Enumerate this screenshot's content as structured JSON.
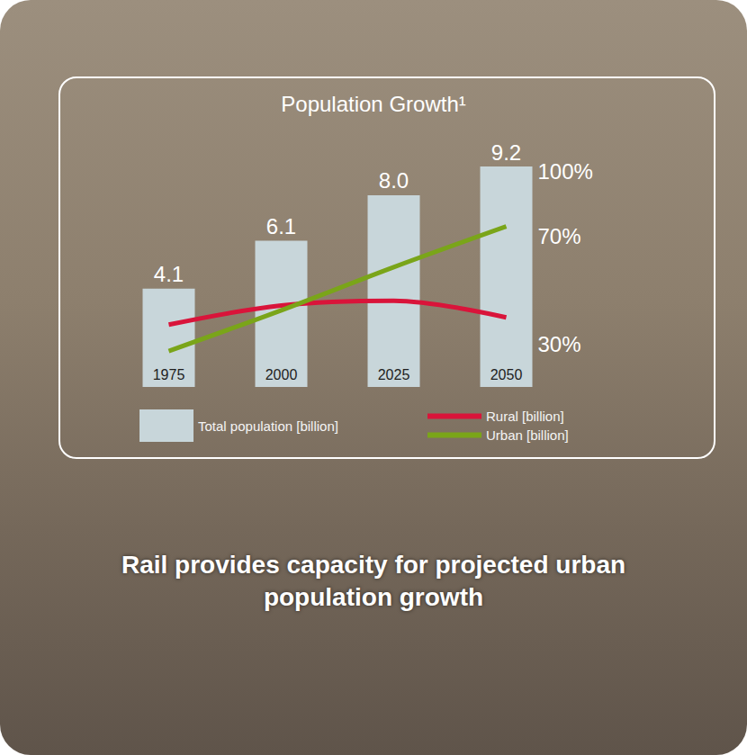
{
  "chart_data": {
    "type": "bar",
    "title": "Population Growth¹",
    "subtitle": "Rail provides capacity for projected urban population growth",
    "categories": [
      "1975",
      "2000",
      "2025",
      "2050"
    ],
    "series": [
      {
        "name": "Total population [billion]",
        "type": "bar",
        "color": "#c8d6da",
        "values": [
          4.1,
          6.1,
          8.0,
          9.2
        ],
        "value_labels": [
          "4.1",
          "6.1",
          "8.0",
          "9.2"
        ],
        "data_labels": true
      },
      {
        "name": "Rural [billion]",
        "type": "line",
        "color": "#d9143a",
        "values": [
          2.6,
          3.4,
          3.6,
          2.9
        ]
      },
      {
        "name": "Urban [billion]",
        "type": "line",
        "color": "#7aa519",
        "values": [
          1.5,
          3.2,
          5.0,
          6.7
        ]
      }
    ],
    "annotations": [
      {
        "text": "100%",
        "y": 9.0
      },
      {
        "text": "70%",
        "y": 6.3
      },
      {
        "text": "30%",
        "y": 1.8
      }
    ],
    "ylim": [
      0,
      9.2
    ],
    "tick_labels": "x",
    "grid": false,
    "legend": "bottom"
  }
}
